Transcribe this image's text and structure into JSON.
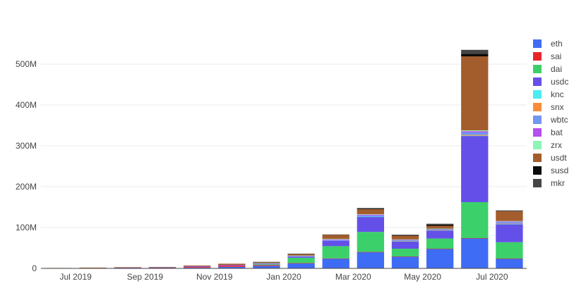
{
  "chart_data": {
    "type": "bar",
    "stacked": true,
    "title": "",
    "xlabel": "",
    "ylabel": "",
    "grid": true,
    "legend_position": "right",
    "ylim": [
      0,
      550000000
    ],
    "y_ticks": [
      {
        "value": 0,
        "label": "0"
      },
      {
        "value": 100000000,
        "label": "100M"
      },
      {
        "value": 200000000,
        "label": "200M"
      },
      {
        "value": 300000000,
        "label": "300M"
      },
      {
        "value": 400000000,
        "label": "400M"
      },
      {
        "value": 500000000,
        "label": "500M"
      }
    ],
    "x_ticks": [
      {
        "at": "2019-07",
        "label": "Jul 2019"
      },
      {
        "at": "2019-09",
        "label": "Sep 2019"
      },
      {
        "at": "2019-11",
        "label": "Nov 2019"
      },
      {
        "at": "2020-01",
        "label": "Jan 2020"
      },
      {
        "at": "2020-03",
        "label": "Mar 2020"
      },
      {
        "at": "2020-05",
        "label": "May 2020"
      },
      {
        "at": "2020-07",
        "label": "Jul 2020"
      }
    ],
    "categories": [
      "2019-06",
      "2019-07",
      "2019-08",
      "2019-09",
      "2019-10",
      "2019-11",
      "2019-12",
      "2020-01",
      "2020-02",
      "2020-03",
      "2020-04",
      "2020-05",
      "2020-06",
      "2020-07"
    ],
    "series": [
      {
        "name": "eth",
        "color": "#3f6cf5",
        "values": [
          200000,
          500000,
          800000,
          1000000,
          2000000,
          4000000,
          6000000,
          12000000,
          24000000,
          40000000,
          29000000,
          48000000,
          74000000,
          24000000
        ]
      },
      {
        "name": "sai",
        "color": "#e8262a",
        "values": [
          500000,
          700000,
          1000000,
          1000000,
          2000000,
          3000000,
          2000000,
          1000000,
          500000,
          300000,
          200000,
          100000,
          100000,
          100000
        ]
      },
      {
        "name": "dai",
        "color": "#3cd06b",
        "values": [
          0,
          0,
          0,
          0,
          0,
          0,
          2000000,
          13000000,
          30000000,
          49000000,
          19000000,
          25000000,
          88000000,
          40000000
        ]
      },
      {
        "name": "usdc",
        "color": "#6450e8",
        "values": [
          100000,
          200000,
          300000,
          500000,
          800000,
          1000000,
          1500000,
          3000000,
          13000000,
          37000000,
          18000000,
          20000000,
          162000000,
          44000000
        ]
      },
      {
        "name": "knc",
        "color": "#4cecf0",
        "values": [
          0,
          0,
          0,
          0,
          0,
          0,
          0,
          0,
          0,
          300000,
          300000,
          200000,
          800000,
          500000
        ]
      },
      {
        "name": "snx",
        "color": "#f98c3a",
        "values": [
          0,
          0,
          0,
          0,
          0,
          0,
          0,
          0,
          0,
          0,
          500000,
          500000,
          2000000,
          800000
        ]
      },
      {
        "name": "wbtc",
        "color": "#7196f3",
        "values": [
          0,
          0,
          0,
          100000,
          200000,
          300000,
          500000,
          1000000,
          2000000,
          3000000,
          2000000,
          2000000,
          6000000,
          4000000
        ]
      },
      {
        "name": "bat",
        "color": "#b44ff0",
        "values": [
          0,
          0,
          0,
          0,
          100000,
          200000,
          500000,
          1000000,
          1500000,
          2000000,
          1500000,
          1000000,
          3000000,
          1500000
        ]
      },
      {
        "name": "zrx",
        "color": "#8df5b5",
        "values": [
          0,
          0,
          0,
          0,
          0,
          0,
          500000,
          500000,
          1000000,
          1000000,
          500000,
          500000,
          2000000,
          1000000
        ]
      },
      {
        "name": "usdt",
        "color": "#a35d2d",
        "values": [
          300000,
          500000,
          800000,
          1000000,
          2000000,
          3000000,
          2500000,
          4000000,
          10000000,
          13000000,
          9000000,
          7000000,
          181000000,
          24000000
        ]
      },
      {
        "name": "susd",
        "color": "#0b0b0b",
        "values": [
          0,
          0,
          0,
          0,
          0,
          0,
          0,
          0,
          0,
          200000,
          1500000,
          3000000,
          6000000,
          1000000
        ]
      },
      {
        "name": "mkr",
        "color": "#454545",
        "values": [
          0,
          0,
          0,
          0,
          0,
          0,
          500000,
          500000,
          1000000,
          2000000,
          1000000,
          2000000,
          10000000,
          1000000
        ]
      }
    ]
  }
}
